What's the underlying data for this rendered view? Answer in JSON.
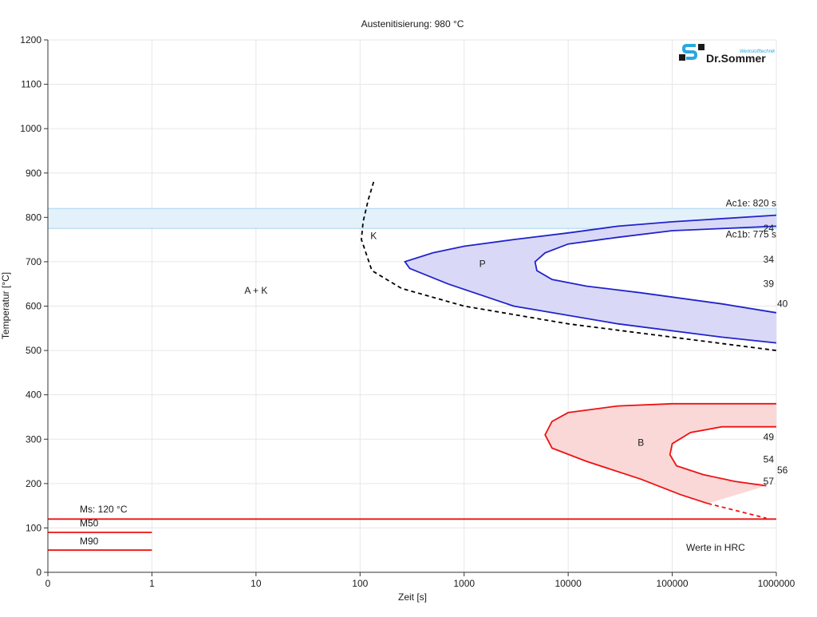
{
  "chart_data": {
    "type": "line",
    "title": "Austenitisierung: 980 °C",
    "xlabel": "Zeit [s]",
    "ylabel": "Temperatur [°C]",
    "x_scale": "log",
    "x_ticks": [
      {
        "value": 0,
        "label": "0"
      },
      {
        "value": 1,
        "label": "1"
      },
      {
        "value": 10,
        "label": "10"
      },
      {
        "value": 100,
        "label": "100"
      },
      {
        "value": 1000,
        "label": "1000"
      },
      {
        "value": 10000,
        "label": "10000"
      },
      {
        "value": 100000,
        "label": "100000"
      },
      {
        "value": 1000000,
        "label": "1000000"
      }
    ],
    "y_ticks": [
      0,
      100,
      200,
      300,
      400,
      500,
      600,
      700,
      800,
      900,
      1000,
      1100,
      1200
    ],
    "ylim": [
      0,
      1200
    ],
    "grid": true,
    "colors": {
      "pearlite": "#2222cc",
      "pearlite_fill": "#d9d9f7",
      "bainite": "#ee1111",
      "bainite_fill": "#fbd8d8",
      "ac_band": "#e3f1fa",
      "ac_band_edge": "#a8d4ee",
      "carbide": "#000000"
    },
    "ac_band": {
      "from": 775,
      "to": 820
    },
    "ac_labels": [
      {
        "text": "Ac1e: 820 s",
        "x": 1000000,
        "y": 825
      },
      {
        "text": "Ac1b: 775 s",
        "x": 1000000,
        "y": 755
      }
    ],
    "series": [
      {
        "key": "carbide",
        "style": "dashed",
        "color": "#000000",
        "points": [
          [
            135,
            880
          ],
          [
            120,
            840
          ],
          [
            107,
            790
          ],
          [
            103,
            750
          ],
          [
            130,
            680
          ],
          [
            250,
            640
          ],
          [
            1000,
            600
          ],
          [
            10000,
            560
          ],
          [
            100000,
            530
          ],
          [
            1000000,
            500
          ]
        ]
      },
      {
        "key": "p_start",
        "style": "solid",
        "color": "#2222cc",
        "points": [
          [
            1000000,
            805
          ],
          [
            100000,
            790
          ],
          [
            30000,
            780
          ],
          [
            10000,
            765
          ],
          [
            3000,
            750
          ],
          [
            1000,
            735
          ],
          [
            500,
            720
          ],
          [
            270,
            700
          ],
          [
            300,
            685
          ],
          [
            700,
            650
          ],
          [
            3000,
            600
          ],
          [
            30000,
            560
          ],
          [
            300000,
            530
          ],
          [
            1000000,
            517
          ]
        ]
      },
      {
        "key": "p_end",
        "style": "solid",
        "color": "#2222cc",
        "points": [
          [
            1000000,
            780
          ],
          [
            100000,
            770
          ],
          [
            30000,
            755
          ],
          [
            10000,
            740
          ],
          [
            6000,
            720
          ],
          [
            4800,
            700
          ],
          [
            5000,
            680
          ],
          [
            7000,
            660
          ],
          [
            15000,
            645
          ],
          [
            50000,
            630
          ],
          [
            300000,
            605
          ],
          [
            1000000,
            585
          ]
        ]
      },
      {
        "key": "b_start",
        "style": "solid",
        "color": "#ee1111",
        "points": [
          [
            1000000,
            380
          ],
          [
            100000,
            380
          ],
          [
            30000,
            375
          ],
          [
            10000,
            360
          ],
          [
            7000,
            340
          ],
          [
            6000,
            310
          ],
          [
            7000,
            280
          ],
          [
            15000,
            250
          ],
          [
            50000,
            210
          ],
          [
            120000,
            175
          ],
          [
            220000,
            155
          ]
        ]
      },
      {
        "key": "b_start_ext",
        "style": "dashed",
        "color": "#ee1111",
        "points": [
          [
            220000,
            155
          ],
          [
            800000,
            122
          ]
        ]
      },
      {
        "key": "b_end",
        "style": "solid",
        "color": "#ee1111",
        "points": [
          [
            1000000,
            328
          ],
          [
            300000,
            328
          ],
          [
            150000,
            315
          ],
          [
            100000,
            290
          ],
          [
            95000,
            265
          ],
          [
            110000,
            240
          ],
          [
            200000,
            220
          ],
          [
            400000,
            205
          ],
          [
            800000,
            195
          ]
        ]
      },
      {
        "key": "ms",
        "style": "solid",
        "color": "#ee1111",
        "points": [
          [
            0,
            120
          ],
          [
            1000000,
            120
          ]
        ]
      },
      {
        "key": "m50",
        "style": "solid",
        "color": "#ee1111",
        "points": [
          [
            0,
            90
          ],
          [
            1,
            90
          ]
        ]
      },
      {
        "key": "m90",
        "style": "solid",
        "color": "#ee1111",
        "points": [
          [
            0,
            50
          ],
          [
            1,
            50
          ]
        ]
      }
    ],
    "regions": [
      {
        "label": "A + K",
        "x": 10,
        "y": 635
      },
      {
        "label": "K",
        "x": 135,
        "y": 758
      },
      {
        "label": "P",
        "x": 1500,
        "y": 695
      },
      {
        "label": "B",
        "x": 50000,
        "y": 292
      }
    ],
    "line_labels": [
      {
        "label": "Ms: 120 °C",
        "x": 0,
        "y": 135
      },
      {
        "label": "M50",
        "x": 0,
        "y": 103
      },
      {
        "label": "M90",
        "x": 0,
        "y": 63
      }
    ],
    "hardness_values": [
      {
        "label": "24",
        "x": 1000000,
        "y": 775
      },
      {
        "label": "34",
        "x": 1000000,
        "y": 705
      },
      {
        "label": "39",
        "x": 1000000,
        "y": 650
      },
      {
        "label": "40",
        "x": 1000000,
        "y": 605
      },
      {
        "label": "49",
        "x": 1000000,
        "y": 305
      },
      {
        "label": "54",
        "x": 1000000,
        "y": 255
      },
      {
        "label": "56",
        "x": 1000000,
        "y": 230
      },
      {
        "label": "57",
        "x": 1000000,
        "y": 205
      }
    ],
    "note": "Werte in HRC"
  },
  "logo": {
    "brand": "Dr.Sommer",
    "sub": "Werkstofftechnik"
  }
}
